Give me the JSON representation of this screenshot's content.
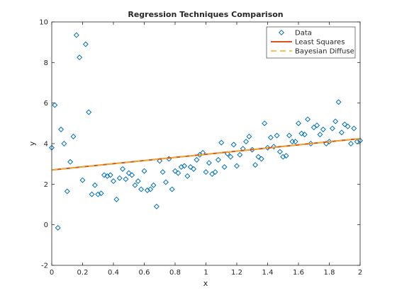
{
  "chart_data": {
    "type": "scatter",
    "title": "Regression Techniques Comparison",
    "xlabel": "x",
    "ylabel": "y",
    "xlim": [
      0,
      2
    ],
    "ylim": [
      -2,
      10
    ],
    "xticks": [
      "0",
      "0.2",
      "0.4",
      "0.6",
      "0.8",
      "1",
      "1.2",
      "1.4",
      "1.6",
      "1.8",
      "2"
    ],
    "yticks": [
      "-2",
      "0",
      "2",
      "4",
      "6",
      "8",
      "10"
    ],
    "grid": false,
    "legend_position": "top-right",
    "legend": [
      {
        "label": "Data",
        "marker": "diamond",
        "color": "#0072BD"
      },
      {
        "label": "Least Squares",
        "marker": "solid-line",
        "color": "#D95319"
      },
      {
        "label": "Bayesian Diffuse",
        "marker": "dashed-line",
        "color": "#EDB120"
      }
    ],
    "series": [
      {
        "name": "Data",
        "kind": "scatter",
        "color": "#0072BD",
        "points": [
          [
            0.0,
            3.8
          ],
          [
            0.02,
            5.9
          ],
          [
            0.04,
            -0.15
          ],
          [
            0.06,
            4.7
          ],
          [
            0.08,
            4.0
          ],
          [
            0.1,
            1.65
          ],
          [
            0.12,
            3.1
          ],
          [
            0.14,
            4.35
          ],
          [
            0.16,
            9.35
          ],
          [
            0.18,
            8.25
          ],
          [
            0.2,
            2.2
          ],
          [
            0.22,
            8.9
          ],
          [
            0.24,
            5.55
          ],
          [
            0.26,
            1.5
          ],
          [
            0.28,
            1.95
          ],
          [
            0.3,
            1.5
          ],
          [
            0.32,
            1.55
          ],
          [
            0.34,
            2.45
          ],
          [
            0.36,
            2.4
          ],
          [
            0.38,
            2.45
          ],
          [
            0.4,
            2.15
          ],
          [
            0.42,
            1.25
          ],
          [
            0.44,
            2.3
          ],
          [
            0.46,
            2.75
          ],
          [
            0.48,
            2.25
          ],
          [
            0.5,
            2.55
          ],
          [
            0.52,
            2.45
          ],
          [
            0.54,
            1.95
          ],
          [
            0.56,
            2.15
          ],
          [
            0.58,
            1.75
          ],
          [
            0.6,
            2.65
          ],
          [
            0.62,
            1.7
          ],
          [
            0.64,
            1.75
          ],
          [
            0.66,
            1.95
          ],
          [
            0.68,
            0.9
          ],
          [
            0.7,
            3.15
          ],
          [
            0.72,
            2.6
          ],
          [
            0.74,
            2.1
          ],
          [
            0.76,
            3.25
          ],
          [
            0.78,
            1.75
          ],
          [
            0.8,
            2.65
          ],
          [
            0.82,
            2.55
          ],
          [
            0.84,
            2.85
          ],
          [
            0.86,
            2.9
          ],
          [
            0.88,
            2.4
          ],
          [
            0.9,
            2.85
          ],
          [
            0.92,
            2.75
          ],
          [
            0.94,
            3.2
          ],
          [
            0.96,
            3.45
          ],
          [
            0.98,
            3.55
          ],
          [
            1.0,
            2.6
          ],
          [
            1.02,
            3.05
          ],
          [
            1.04,
            2.5
          ],
          [
            1.06,
            2.6
          ],
          [
            1.08,
            3.2
          ],
          [
            1.1,
            4.05
          ],
          [
            1.12,
            2.85
          ],
          [
            1.14,
            3.5
          ],
          [
            1.16,
            3.35
          ],
          [
            1.18,
            3.95
          ],
          [
            1.2,
            2.9
          ],
          [
            1.22,
            3.45
          ],
          [
            1.24,
            3.75
          ],
          [
            1.26,
            4.1
          ],
          [
            1.28,
            4.35
          ],
          [
            1.3,
            3.7
          ],
          [
            1.32,
            2.95
          ],
          [
            1.34,
            3.35
          ],
          [
            1.36,
            3.25
          ],
          [
            1.38,
            5.0
          ],
          [
            1.4,
            3.8
          ],
          [
            1.42,
            4.3
          ],
          [
            1.44,
            3.85
          ],
          [
            1.46,
            4.4
          ],
          [
            1.48,
            3.6
          ],
          [
            1.5,
            3.35
          ],
          [
            1.52,
            3.4
          ],
          [
            1.54,
            4.4
          ],
          [
            1.56,
            4.1
          ],
          [
            1.58,
            4.1
          ],
          [
            1.6,
            5.0
          ],
          [
            1.62,
            4.5
          ],
          [
            1.64,
            4.45
          ],
          [
            1.66,
            5.2
          ],
          [
            1.68,
            4.0
          ],
          [
            1.7,
            4.8
          ],
          [
            1.72,
            4.9
          ],
          [
            1.74,
            4.45
          ],
          [
            1.76,
            4.7
          ],
          [
            1.78,
            4.0
          ],
          [
            1.8,
            4.1
          ],
          [
            1.82,
            4.75
          ],
          [
            1.84,
            5.1
          ],
          [
            1.86,
            6.05
          ],
          [
            1.88,
            4.55
          ],
          [
            1.9,
            4.95
          ],
          [
            1.92,
            4.85
          ],
          [
            1.94,
            4.0
          ],
          [
            1.96,
            4.75
          ],
          [
            1.98,
            4.1
          ],
          [
            2.0,
            4.15
          ]
        ]
      },
      {
        "name": "Least Squares",
        "kind": "line",
        "color": "#D95319",
        "points": [
          [
            0,
            2.7
          ],
          [
            2,
            4.25
          ]
        ]
      },
      {
        "name": "Bayesian Diffuse",
        "kind": "dashed-line",
        "color": "#EDB120",
        "points": [
          [
            0,
            2.7
          ],
          [
            2,
            4.25
          ]
        ]
      }
    ]
  }
}
